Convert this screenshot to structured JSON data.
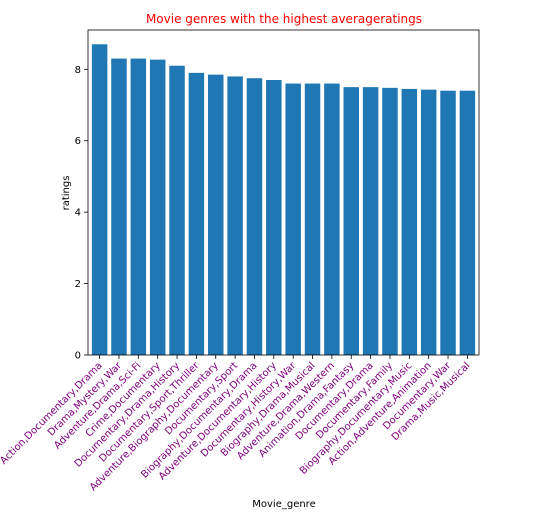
{
  "colors": {
    "bar": "#1f77b4",
    "title": "#ff0000",
    "category_label": "#800080",
    "axes": "#000000"
  },
  "chart_data": {
    "type": "bar",
    "title": "Movie genres with the highest averageratings",
    "xlabel": "Movie_genre",
    "ylabel": "ratings",
    "ylim": [
      0,
      9.1
    ],
    "yticks": [
      0,
      2,
      4,
      6,
      8
    ],
    "grid": false,
    "categories": [
      "Action,Documentary,Drama",
      "Drama,Mystery,War",
      "Adventure,Drama,Sci-Fi",
      "Crime,Documentary",
      "Documentary,Drama,History",
      "Documentary,Sport,Thriller",
      "Adventure,Biography,Documentary",
      "Documentary,Sport",
      "Biography,Documentary,Drama",
      "Adventure,Documentary,History",
      "Documentary,History,War",
      "Biography,Drama,Musical",
      "Adventure,Drama,Western",
      "Animation,Drama,Fantasy",
      "Documentary,Drama",
      "Documentary,Family",
      "Biography,Documentary,Music",
      "Action,Adventure,Animation",
      "Documentary,War",
      "Drama,Music,Musical"
    ],
    "values": [
      8.7,
      8.3,
      8.3,
      8.27,
      8.1,
      7.9,
      7.85,
      7.8,
      7.75,
      7.7,
      7.6,
      7.6,
      7.6,
      7.5,
      7.5,
      7.48,
      7.45,
      7.43,
      7.4,
      7.4
    ]
  }
}
